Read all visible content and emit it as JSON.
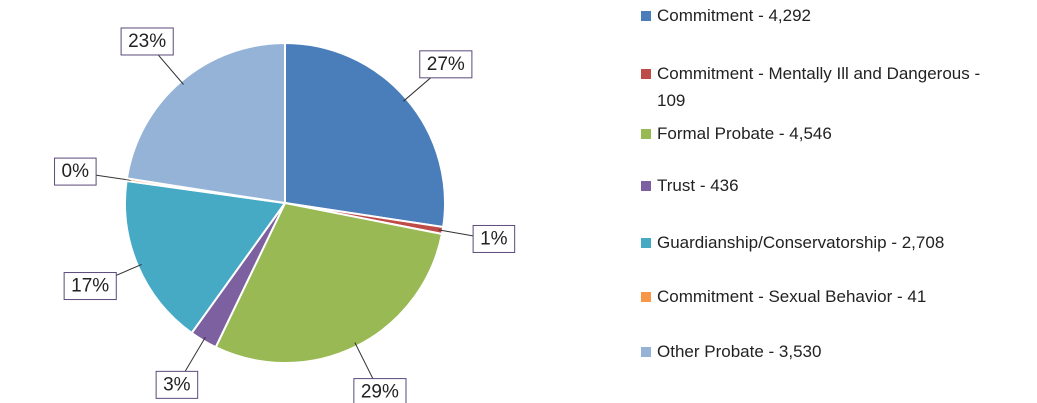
{
  "chart_data": {
    "type": "pie",
    "categories": [
      "Commitment - 4,292",
      "Commitment - Mentally Ill and Dangerous - 109",
      "Formal Probate - 4,546",
      "Trust - 436",
      "Guardianship/Conservatorship - 2,708",
      "Commitment - Sexual Behavior - 41",
      "Other Probate - 3,530"
    ],
    "values": [
      27.4,
      0.7,
      29.03,
      2.78,
      17.29,
      0.26,
      22.54
    ],
    "value_labels": [
      "27%",
      "1%",
      "29%",
      "3%",
      "17%",
      "0%",
      "23%"
    ],
    "colors": [
      "#4a7ebb",
      "#be4b48",
      "#98b954",
      "#7d60a0",
      "#46aac5",
      "#f79646",
      "#95b3d7"
    ]
  }
}
